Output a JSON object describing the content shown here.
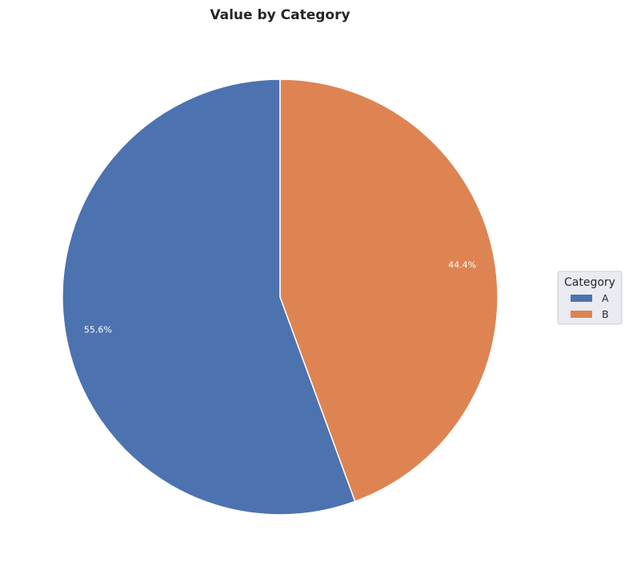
{
  "chart_data": {
    "type": "pie",
    "title": "Value by Category",
    "categories": [
      "A",
      "B"
    ],
    "values": [
      55.6,
      44.4
    ],
    "labels": [
      "55.6%",
      "44.4%"
    ],
    "colors": [
      "#4c72b0",
      "#dd8452"
    ],
    "start_angle_deg": 90,
    "direction": "counterclockwise",
    "legend": {
      "title": "Category",
      "placement": "center-right"
    }
  }
}
